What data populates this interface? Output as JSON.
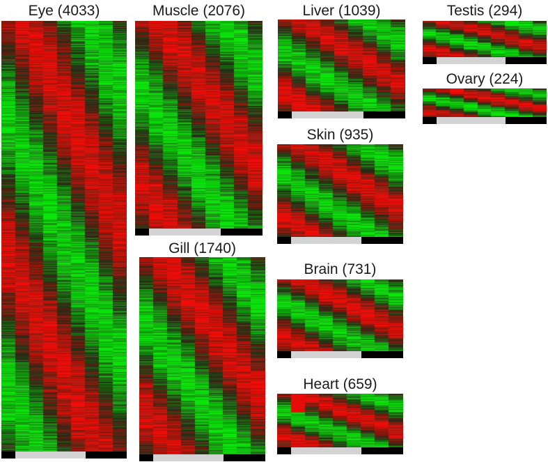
{
  "chart_data": [
    {
      "type": "heatmap",
      "title": "Eye (4033)",
      "columns": 9,
      "time_segments": [
        "dark",
        "light",
        "dark"
      ]
    },
    {
      "type": "heatmap",
      "title": "Muscle (2076)",
      "columns": 9,
      "time_segments": [
        "dark",
        "light",
        "dark"
      ]
    },
    {
      "type": "heatmap",
      "title": "Gill (1740)",
      "columns": 9,
      "time_segments": [
        "dark",
        "light",
        "dark"
      ]
    },
    {
      "type": "heatmap",
      "title": "Liver (1039)",
      "columns": 9,
      "time_segments": [
        "dark",
        "light",
        "dark"
      ]
    },
    {
      "type": "heatmap",
      "title": "Skin (935)",
      "columns": 9,
      "time_segments": [
        "dark",
        "light",
        "dark"
      ]
    },
    {
      "type": "heatmap",
      "title": "Brain (731)",
      "columns": 9,
      "time_segments": [
        "dark",
        "light",
        "dark"
      ]
    },
    {
      "type": "heatmap",
      "title": "Heart (659)",
      "columns": 9,
      "time_segments": [
        "dark",
        "light",
        "dark"
      ]
    },
    {
      "type": "heatmap",
      "title": "Testis (294)",
      "columns": 9,
      "time_segments": [
        "dark",
        "light",
        "dark"
      ]
    },
    {
      "type": "heatmap",
      "title": "Ovary (224)",
      "columns": 9,
      "time_segments": [
        "dark",
        "light",
        "dark"
      ]
    }
  ],
  "colors": {
    "high": "#e02020",
    "low": "#20d020",
    "mid": "#1a1a0a",
    "dark_phase": "#000000",
    "light_phase": "#d3d3d3"
  }
}
